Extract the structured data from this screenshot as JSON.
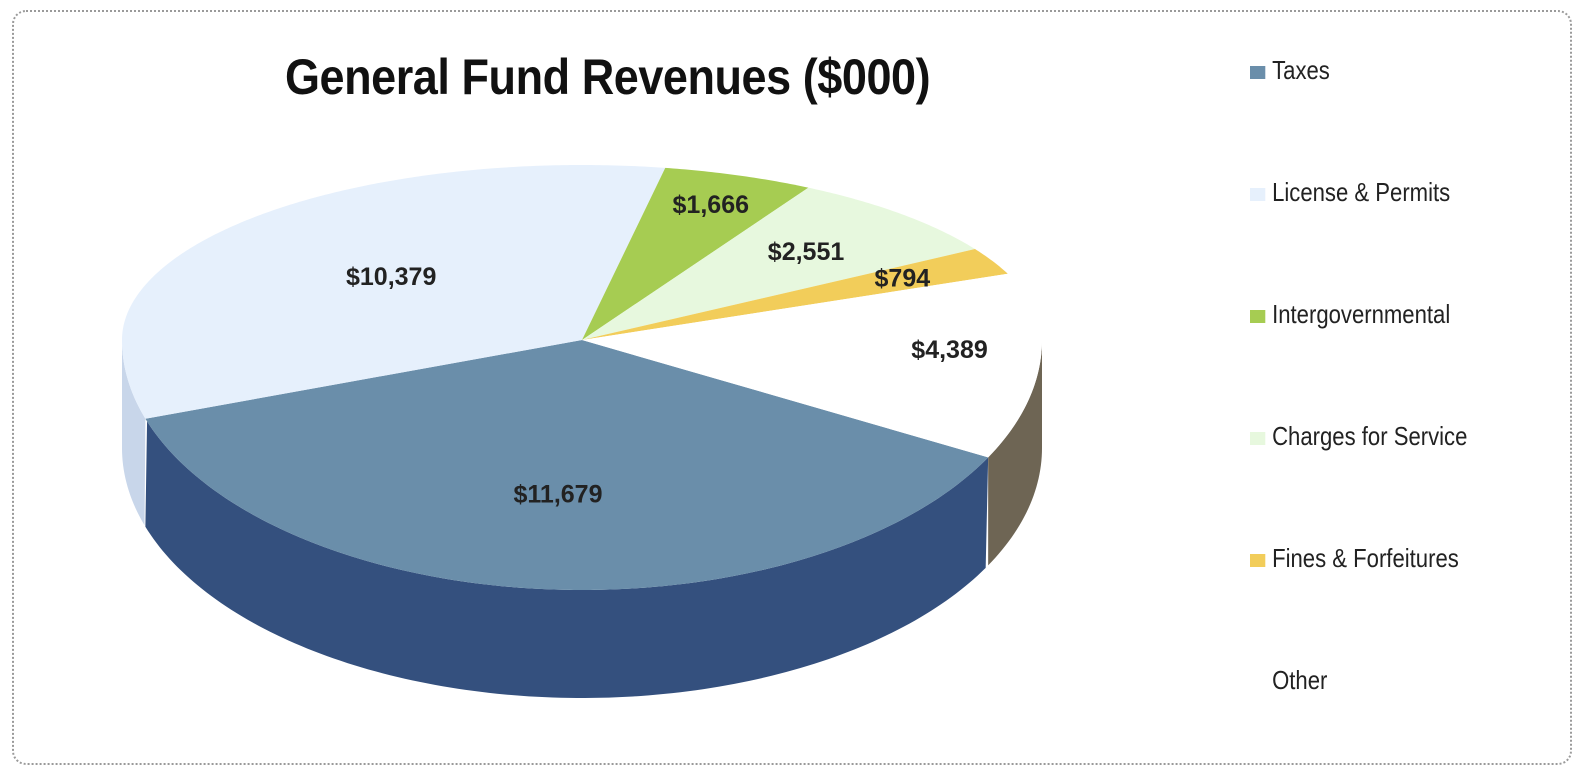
{
  "chart_data": {
    "type": "pie",
    "title": "General Fund Revenues ($000)",
    "legend_position": "right",
    "slices": [
      {
        "label": "Taxes",
        "value": 11679,
        "data_label": "$11,679",
        "color": "#6a8eaa",
        "side_color": "#34507e"
      },
      {
        "label": "License & Permits",
        "value": 10379,
        "data_label": "$10,379",
        "color": "#e6f0fc",
        "side_color": "#c8d6ea"
      },
      {
        "label": "Intergovernmental",
        "value": 1666,
        "data_label": "$1,666",
        "color": "#a6cc52",
        "side_color": "#86a840"
      },
      {
        "label": "Charges for Service",
        "value": 2551,
        "data_label": "$2,551",
        "color": "#e7f8de",
        "side_color": "#c8dcbe"
      },
      {
        "label": "Fines & Forfeitures",
        "value": 794,
        "data_label": "$794",
        "color": "#f2cd5a",
        "side_color": "#c8a640"
      },
      {
        "label": "Other",
        "value": 4389,
        "data_label": "$4,389",
        "color": "#ffffff",
        "side_color": "#6e6554"
      }
    ]
  }
}
